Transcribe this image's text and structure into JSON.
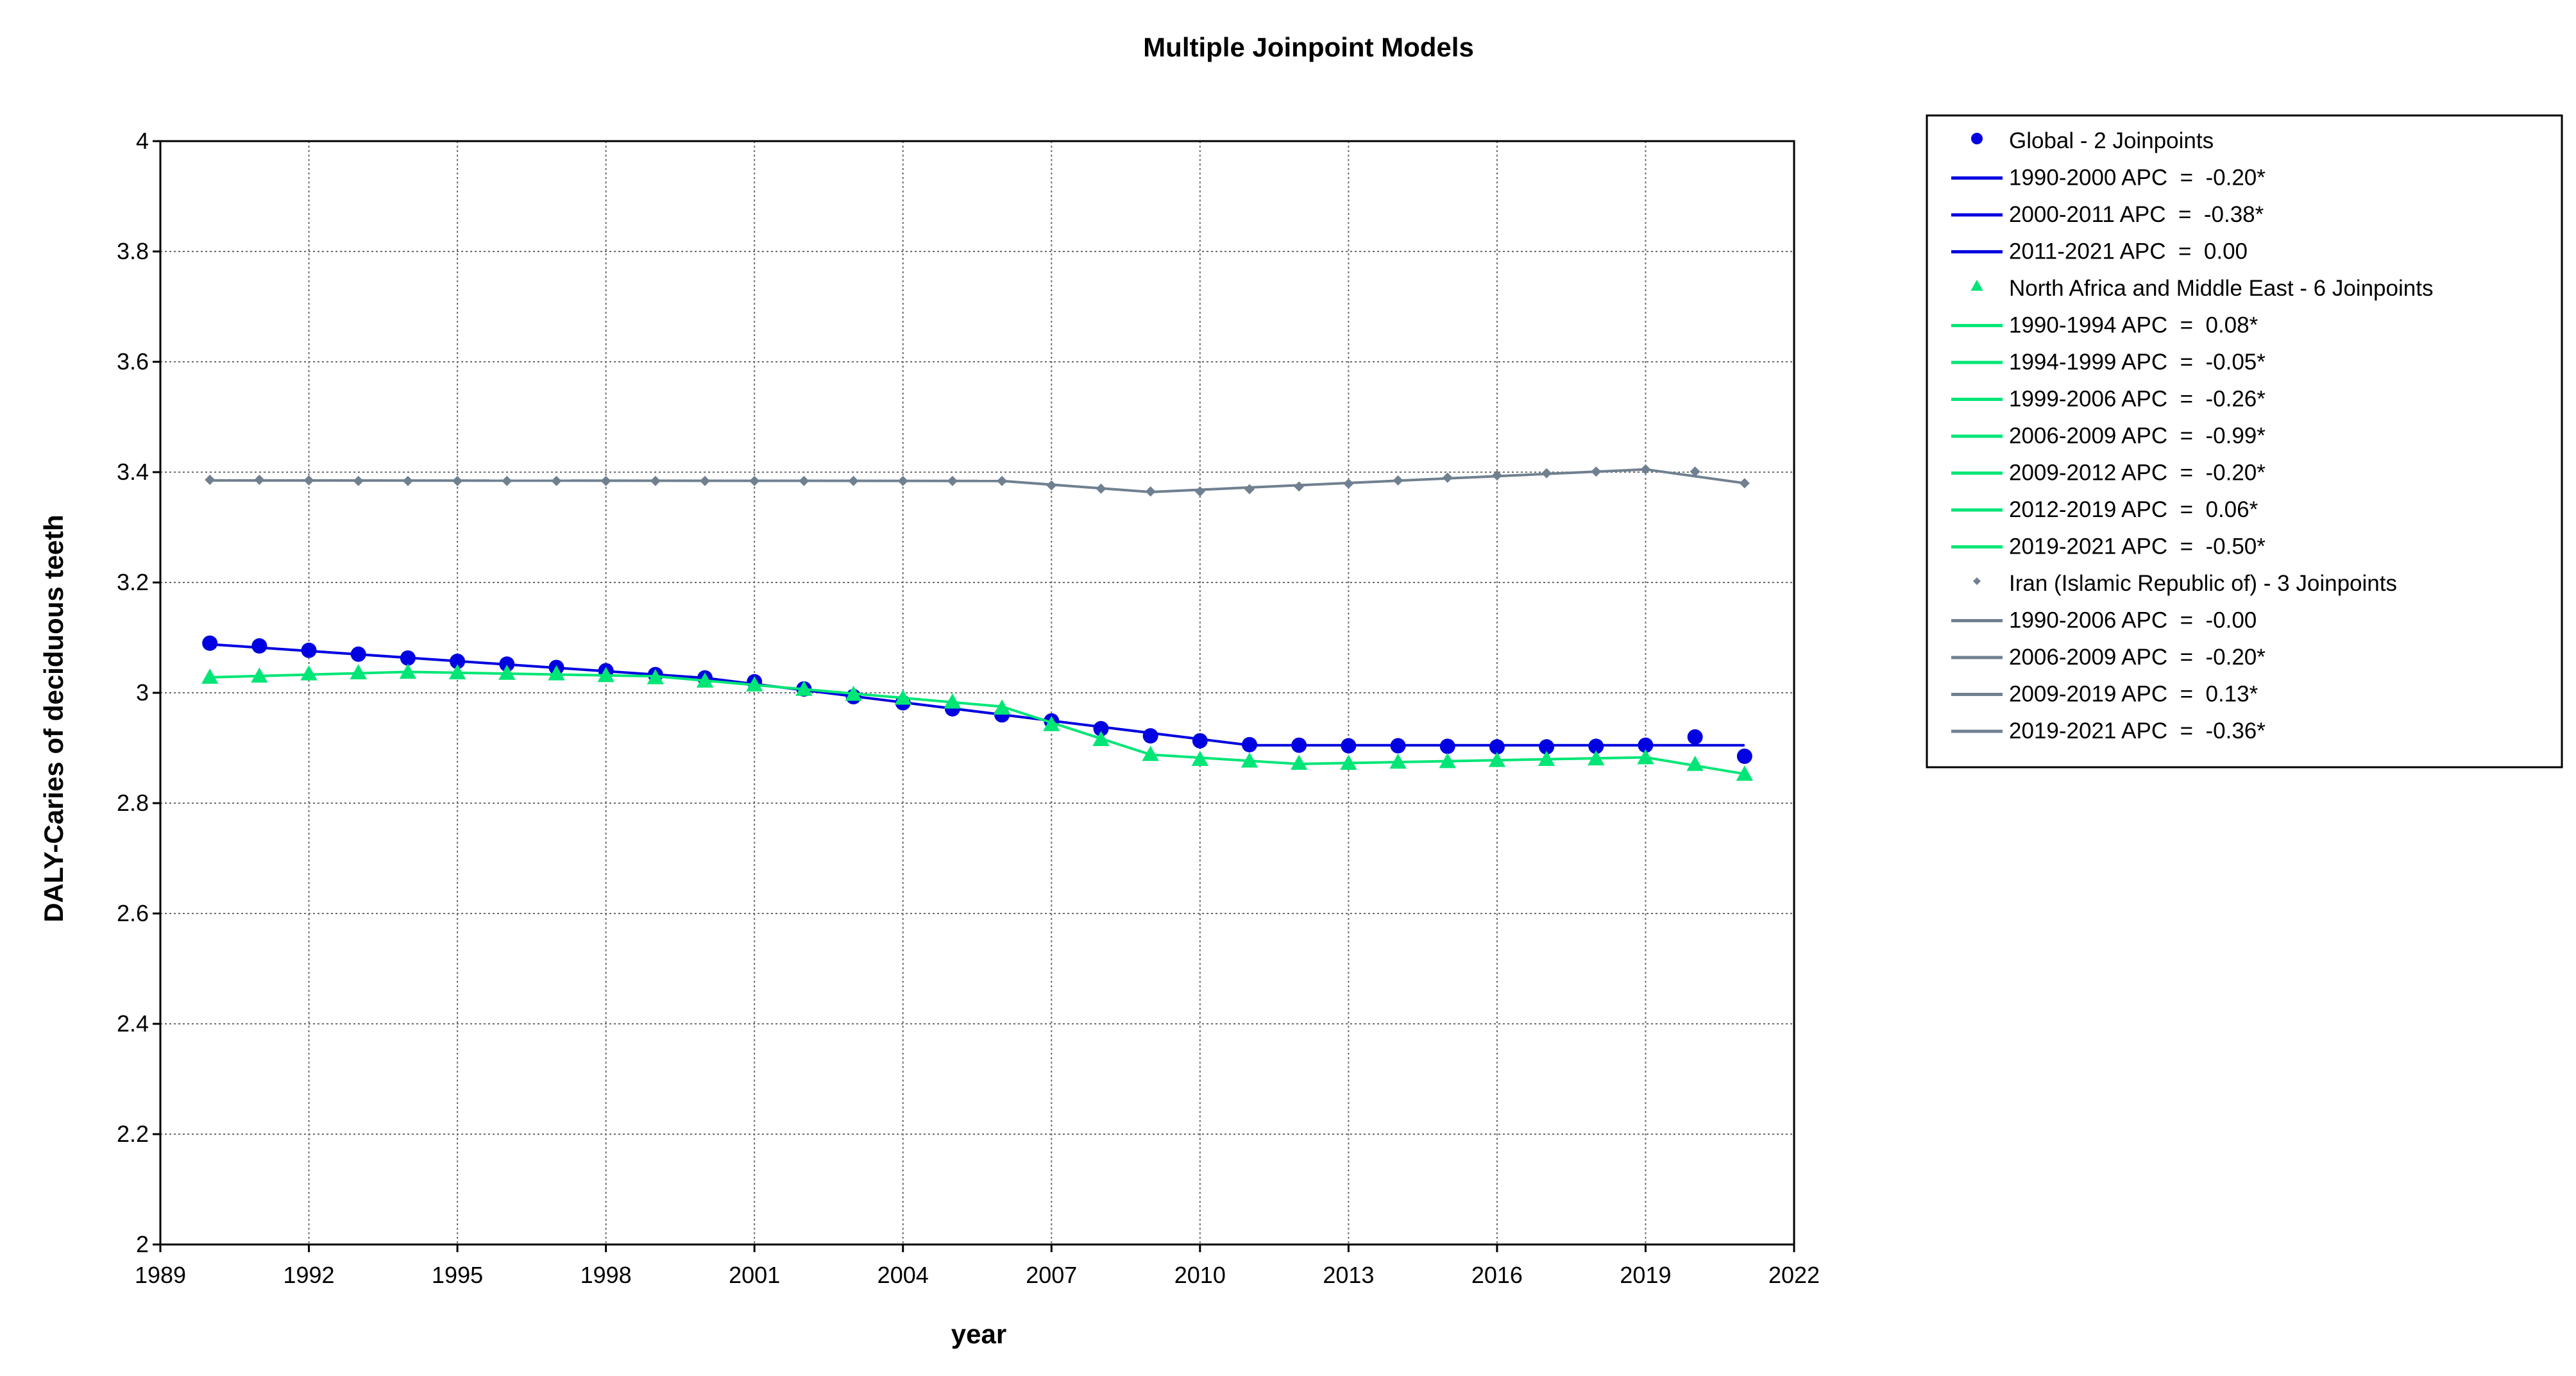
{
  "chart_data": {
    "type": "line",
    "title": "Multiple Joinpoint Models",
    "xlabel": "year",
    "ylabel": "DALY-Caries of deciduous teeth",
    "xlim": [
      1989,
      2022
    ],
    "ylim": [
      2,
      4
    ],
    "xticks": [
      "1989",
      "1992",
      "1995",
      "1998",
      "2001",
      "2004",
      "2007",
      "2010",
      "2013",
      "2016",
      "2019",
      "2022"
    ],
    "yticks": [
      "2",
      "2.2",
      "2.4",
      "2.6",
      "2.8",
      "3",
      "3.2",
      "3.4",
      "3.6",
      "3.8",
      "4"
    ],
    "grid": true,
    "legend_position": "right",
    "x": [
      1990,
      1991,
      1992,
      1993,
      1994,
      1995,
      1996,
      1997,
      1998,
      1999,
      2000,
      2001,
      2002,
      2003,
      2004,
      2005,
      2006,
      2007,
      2008,
      2009,
      2010,
      2011,
      2012,
      2013,
      2014,
      2015,
      2016,
      2017,
      2018,
      2019,
      2020,
      2021
    ],
    "series": [
      {
        "name": "Global - 2 Joinpoints",
        "color": "#0000e0",
        "marker": "circle",
        "observed": [
          3.09,
          3.085,
          3.077,
          3.07,
          3.063,
          3.057,
          3.052,
          3.046,
          3.04,
          3.033,
          3.027,
          3.02,
          3.007,
          2.993,
          2.982,
          2.971,
          2.96,
          2.949,
          2.935,
          2.922,
          2.913,
          2.906,
          2.905,
          2.904,
          2.904,
          2.903,
          2.902,
          2.902,
          2.903,
          2.905,
          2.92,
          2.885
        ],
        "segments": [
          {
            "label": "1990-2000 APC  =  -0.20*",
            "x": [
              1990,
              2000
            ],
            "y": [
              3.088,
              3.027
            ]
          },
          {
            "label": "2000-2011 APC  =  -0.38*",
            "x": [
              2000,
              2011
            ],
            "y": [
              3.027,
              2.905
            ]
          },
          {
            "label": "2011-2021 APC  =  0.00",
            "x": [
              2011,
              2021
            ],
            "y": [
              2.905,
              2.905
            ]
          }
        ]
      },
      {
        "name": "North Africa and Middle East - 6 Joinpoints",
        "color": "#00e676",
        "marker": "triangle",
        "observed": [
          3.028,
          3.03,
          3.034,
          3.036,
          3.037,
          3.036,
          3.035,
          3.034,
          3.031,
          3.027,
          3.021,
          3.014,
          3.006,
          2.997,
          2.99,
          2.983,
          2.972,
          2.942,
          2.915,
          2.888,
          2.879,
          2.876,
          2.872,
          2.872,
          2.874,
          2.875,
          2.877,
          2.879,
          2.88,
          2.882,
          2.87,
          2.852
        ],
        "segments": [
          {
            "label": "1990-1994 APC  =  0.08*",
            "x": [
              1990,
              1994
            ],
            "y": [
              3.028,
              3.038
            ]
          },
          {
            "label": "1994-1999 APC  =  -0.05*",
            "x": [
              1994,
              1999
            ],
            "y": [
              3.038,
              3.03
            ]
          },
          {
            "label": "1999-2006 APC  =  -0.26*",
            "x": [
              1999,
              2006
            ],
            "y": [
              3.03,
              2.975
            ]
          },
          {
            "label": "2006-2009 APC  =  -0.99*",
            "x": [
              2006,
              2009
            ],
            "y": [
              2.975,
              2.888
            ]
          },
          {
            "label": "2009-2012 APC  =  -0.20*",
            "x": [
              2009,
              2012
            ],
            "y": [
              2.888,
              2.871
            ]
          },
          {
            "label": "2012-2019 APC  =  0.06*",
            "x": [
              2012,
              2019
            ],
            "y": [
              2.871,
              2.883
            ]
          },
          {
            "label": "2019-2021 APC  =  -0.50*",
            "x": [
              2019,
              2021
            ],
            "y": [
              2.883,
              2.853
            ]
          }
        ]
      },
      {
        "name": "Iran (Islamic Republic of) - 3 Joinpoints",
        "color": "#708090",
        "marker": "diamond",
        "observed": [
          3.386,
          3.386,
          3.385,
          3.384,
          3.384,
          3.384,
          3.384,
          3.384,
          3.384,
          3.384,
          3.384,
          3.384,
          3.384,
          3.384,
          3.384,
          3.384,
          3.384,
          3.376,
          3.37,
          3.365,
          3.365,
          3.369,
          3.374,
          3.379,
          3.385,
          3.39,
          3.394,
          3.398,
          3.401,
          3.405,
          3.401,
          3.38
        ],
        "segments": [
          {
            "label": "1990-2006 APC  =  -0.00",
            "x": [
              1990,
              2006
            ],
            "y": [
              3.385,
              3.384
            ]
          },
          {
            "label": "2006-2009 APC  =  -0.20*",
            "x": [
              2006,
              2009
            ],
            "y": [
              3.384,
              3.364
            ]
          },
          {
            "label": "2009-2019 APC  =  0.13*",
            "x": [
              2009,
              2019
            ],
            "y": [
              3.364,
              3.405
            ]
          },
          {
            "label": "2019-2021 APC  =  -0.36*",
            "x": [
              2019,
              2021
            ],
            "y": [
              3.405,
              3.38
            ]
          }
        ]
      }
    ]
  }
}
